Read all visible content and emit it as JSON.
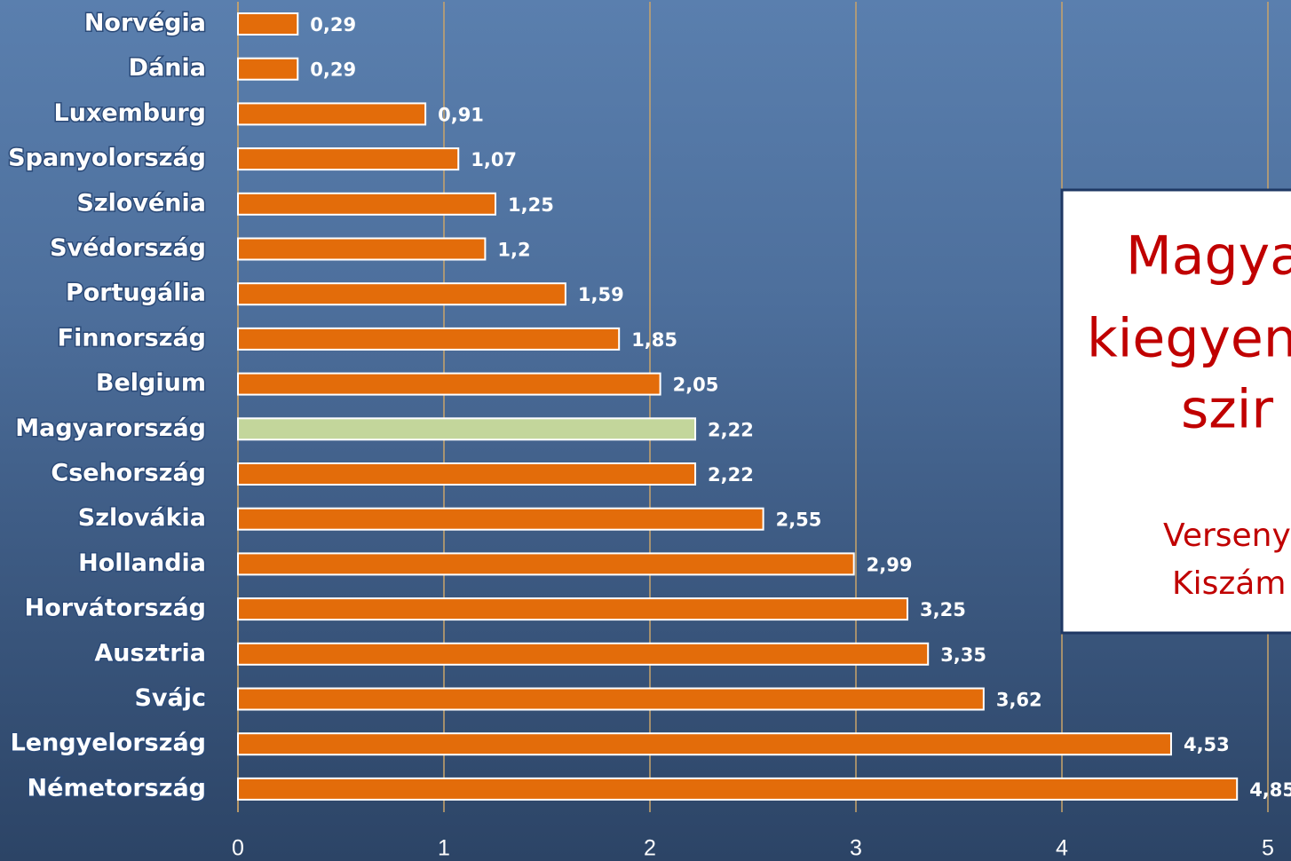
{
  "chart_data": {
    "type": "barh",
    "categories": [
      "Norvégia",
      "Dánia",
      "Luxemburg",
      "Spanyolország",
      "Szlovénia",
      "Svédország",
      "Portugália",
      "Finnország",
      "Belgium",
      "Magyarország",
      "Csehország",
      "Szlovákia",
      "Hollandia",
      "Horvátország",
      "Ausztria",
      "Svájc",
      "Lengyelország",
      "Németország"
    ],
    "values": [
      0.29,
      0.29,
      0.91,
      1.07,
      1.25,
      1.2,
      1.59,
      1.85,
      2.05,
      2.22,
      2.22,
      2.55,
      2.99,
      3.25,
      3.35,
      3.62,
      4.53,
      4.85
    ],
    "value_labels": [
      "0,29",
      "0,29",
      "0,91",
      "1,07",
      "1,25",
      "1,2",
      "1,59",
      "1,85",
      "2,05",
      "2,22",
      "2,22",
      "2,55",
      "2,99",
      "3,25",
      "3,35",
      "3,62",
      "4,53",
      "4,85"
    ],
    "colors": [
      "#e36c0a",
      "#e36c0a",
      "#e36c0a",
      "#e36c0a",
      "#e36c0a",
      "#e36c0a",
      "#e36c0a",
      "#e36c0a",
      "#e36c0a",
      "#c3d69b",
      "#e36c0a",
      "#e36c0a",
      "#e36c0a",
      "#e36c0a",
      "#e36c0a",
      "#e36c0a",
      "#e36c0a",
      "#e36c0a"
    ],
    "xlim": [
      0,
      5
    ],
    "xticks": [
      0,
      1,
      2,
      3,
      4,
      5
    ],
    "grid": true,
    "annotation_box": {
      "lines": [
        "Magya",
        "kiegyen",
        "szir",
        "Verseny",
        "Kiszám"
      ]
    }
  }
}
